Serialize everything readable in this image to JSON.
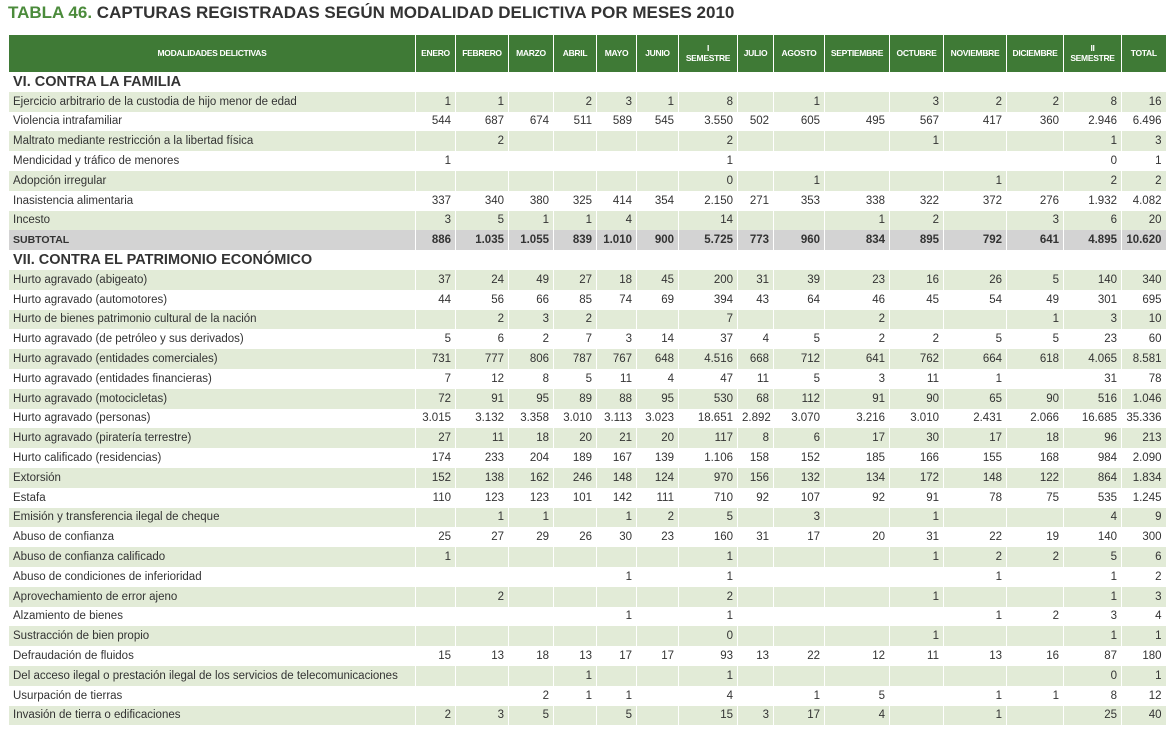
{
  "header": {
    "label": "TABLA 46.",
    "title": "CAPTURAS REGISTRADAS SEGÚN MODALIDAD DELICTIVA POR MESES 2010"
  },
  "table": {
    "columns": [
      "MODALIDADES DELICTIVAS",
      "ENERO",
      "FEBRERO",
      "MARZO",
      "ABRIL",
      "MAYO",
      "JUNIO",
      "I\nSEMESTRE",
      "JULIO",
      "AGOSTO",
      "SEPTIEMBRE",
      "OCTUBRE",
      "NOVIEMBRE",
      "DICIEMBRE",
      "II\nSEMESTRE",
      "TOTAL"
    ],
    "sections": [
      {
        "title": "VI. CONTRA LA FAMILIA",
        "rows": [
          {
            "label": "Ejercicio arbitrario de la custodia de hijo menor de edad",
            "cells": [
              "1",
              "1",
              null,
              "2",
              "3",
              "1",
              "8",
              null,
              "1",
              null,
              "3",
              "2",
              "2",
              "8",
              "16"
            ]
          },
          {
            "label": "Violencia intrafamiliar",
            "cells": [
              "544",
              "687",
              "674",
              "511",
              "589",
              "545",
              "3.550",
              "502",
              "605",
              "495",
              "567",
              "417",
              "360",
              "2.946",
              "6.496"
            ]
          },
          {
            "label": "Maltrato mediante restricción a la libertad física",
            "cells": [
              null,
              "2",
              null,
              null,
              null,
              null,
              "2",
              null,
              null,
              null,
              "1",
              null,
              null,
              "1",
              "3"
            ]
          },
          {
            "label": "Mendicidad y tráfico de menores",
            "cells": [
              "1",
              null,
              null,
              null,
              null,
              null,
              "1",
              null,
              null,
              null,
              null,
              null,
              null,
              "0",
              "1"
            ]
          },
          {
            "label": "Adopción irregular",
            "cells": [
              null,
              null,
              null,
              null,
              null,
              null,
              "0",
              null,
              "1",
              null,
              null,
              "1",
              null,
              "2",
              "2"
            ]
          },
          {
            "label": "Inasistencia alimentaria",
            "cells": [
              "337",
              "340",
              "380",
              "325",
              "414",
              "354",
              "2.150",
              "271",
              "353",
              "338",
              "322",
              "372",
              "276",
              "1.932",
              "4.082"
            ]
          },
          {
            "label": "Incesto",
            "cells": [
              "3",
              "5",
              "1",
              "1",
              "4",
              null,
              "14",
              null,
              null,
              "1",
              "2",
              null,
              "3",
              "6",
              "20"
            ]
          }
        ],
        "subtotal": {
          "label": "SUBTOTAL",
          "cells": [
            "886",
            "1.035",
            "1.055",
            "839",
            "1.010",
            "900",
            "5.725",
            "773",
            "960",
            "834",
            "895",
            "792",
            "641",
            "4.895",
            "10.620"
          ]
        }
      },
      {
        "title": "VII. CONTRA EL PATRIMONIO ECONÓMICO",
        "rows": [
          {
            "label": "Hurto agravado (abigeato)",
            "cells": [
              "37",
              "24",
              "49",
              "27",
              "18",
              "45",
              "200",
              "31",
              "39",
              "23",
              "16",
              "26",
              "5",
              "140",
              "340"
            ]
          },
          {
            "label": "Hurto agravado (automotores)",
            "cells": [
              "44",
              "56",
              "66",
              "85",
              "74",
              "69",
              "394",
              "43",
              "64",
              "46",
              "45",
              "54",
              "49",
              "301",
              "695"
            ]
          },
          {
            "label": "Hurto de bienes patrimonio cultural de la nación",
            "cells": [
              null,
              "2",
              "3",
              "2",
              null,
              null,
              "7",
              null,
              null,
              "2",
              null,
              null,
              "1",
              "3",
              "10"
            ]
          },
          {
            "label": "Hurto agravado (de petróleo y sus derivados)",
            "cells": [
              "5",
              "6",
              "2",
              "7",
              "3",
              "14",
              "37",
              "4",
              "5",
              "2",
              "2",
              "5",
              "5",
              "23",
              "60"
            ]
          },
          {
            "label": "Hurto agravado (entidades comerciales)",
            "cells": [
              "731",
              "777",
              "806",
              "787",
              "767",
              "648",
              "4.516",
              "668",
              "712",
              "641",
              "762",
              "664",
              "618",
              "4.065",
              "8.581"
            ]
          },
          {
            "label": "Hurto agravado (entidades financieras)",
            "cells": [
              "7",
              "12",
              "8",
              "5",
              "11",
              "4",
              "47",
              "11",
              "5",
              "3",
              "11",
              "1",
              null,
              "31",
              "78"
            ]
          },
          {
            "label": "Hurto agravado (motocicletas)",
            "cells": [
              "72",
              "91",
              "95",
              "89",
              "88",
              "95",
              "530",
              "68",
              "112",
              "91",
              "90",
              "65",
              "90",
              "516",
              "1.046"
            ]
          },
          {
            "label": "Hurto agravado (personas)",
            "cells": [
              "3.015",
              "3.132",
              "3.358",
              "3.010",
              "3.113",
              "3.023",
              "18.651",
              "2.892",
              "3.070",
              "3.216",
              "3.010",
              "2.431",
              "2.066",
              "16.685",
              "35.336"
            ]
          },
          {
            "label": "Hurto agravado (piratería terrestre)",
            "cells": [
              "27",
              "11",
              "18",
              "20",
              "21",
              "20",
              "117",
              "8",
              "6",
              "17",
              "30",
              "17",
              "18",
              "96",
              "213"
            ]
          },
          {
            "label": "Hurto calificado (residencias)",
            "cells": [
              "174",
              "233",
              "204",
              "189",
              "167",
              "139",
              "1.106",
              "158",
              "152",
              "185",
              "166",
              "155",
              "168",
              "984",
              "2.090"
            ]
          },
          {
            "label": "Extorsión",
            "cells": [
              "152",
              "138",
              "162",
              "246",
              "148",
              "124",
              "970",
              "156",
              "132",
              "134",
              "172",
              "148",
              "122",
              "864",
              "1.834"
            ]
          },
          {
            "label": "Estafa",
            "cells": [
              "110",
              "123",
              "123",
              "101",
              "142",
              "111",
              "710",
              "92",
              "107",
              "92",
              "91",
              "78",
              "75",
              "535",
              "1.245"
            ]
          },
          {
            "label": "Emisión y transferencia ilegal de cheque",
            "cells": [
              null,
              "1",
              "1",
              null,
              "1",
              "2",
              "5",
              null,
              "3",
              null,
              "1",
              null,
              null,
              "4",
              "9"
            ]
          },
          {
            "label": "Abuso de confianza",
            "cells": [
              "25",
              "27",
              "29",
              "26",
              "30",
              "23",
              "160",
              "31",
              "17",
              "20",
              "31",
              "22",
              "19",
              "140",
              "300"
            ]
          },
          {
            "label": "Abuso de confianza calificado",
            "cells": [
              "1",
              null,
              null,
              null,
              null,
              null,
              "1",
              null,
              null,
              null,
              "1",
              "2",
              "2",
              "5",
              "6"
            ]
          },
          {
            "label": "Abuso de condiciones de inferioridad",
            "cells": [
              null,
              null,
              null,
              null,
              "1",
              null,
              "1",
              null,
              null,
              null,
              null,
              "1",
              null,
              "1",
              "2"
            ]
          },
          {
            "label": "Aprovechamiento de error ajeno",
            "cells": [
              null,
              "2",
              null,
              null,
              null,
              null,
              "2",
              null,
              null,
              null,
              "1",
              null,
              null,
              "1",
              "3"
            ]
          },
          {
            "label": "Alzamiento de bienes",
            "cells": [
              null,
              null,
              null,
              null,
              "1",
              null,
              "1",
              null,
              null,
              null,
              null,
              "1",
              "2",
              "3",
              "4"
            ]
          },
          {
            "label": "Sustracción de bien propio",
            "cells": [
              null,
              null,
              null,
              null,
              null,
              null,
              "0",
              null,
              null,
              null,
              "1",
              null,
              null,
              "1",
              "1"
            ]
          },
          {
            "label": "Defraudación de fluidos",
            "cells": [
              "15",
              "13",
              "18",
              "13",
              "17",
              "17",
              "93",
              "13",
              "22",
              "12",
              "11",
              "13",
              "16",
              "87",
              "180"
            ]
          },
          {
            "label": "Del acceso ilegal o prestación ilegal de los servicios de telecomunicaciones",
            "cells": [
              null,
              null,
              null,
              "1",
              null,
              null,
              "1",
              null,
              null,
              null,
              null,
              null,
              null,
              "0",
              "1"
            ]
          },
          {
            "label": "Usurpación de tierras",
            "cells": [
              null,
              null,
              "2",
              "1",
              "1",
              null,
              "4",
              null,
              "1",
              "5",
              null,
              "1",
              "1",
              "8",
              "12"
            ]
          },
          {
            "label": "Invasión de tierra o edificaciones",
            "cells": [
              "2",
              "3",
              "5",
              null,
              "5",
              null,
              "15",
              "3",
              "17",
              "4",
              null,
              "1",
              null,
              "25",
              "40"
            ]
          }
        ]
      }
    ]
  }
}
